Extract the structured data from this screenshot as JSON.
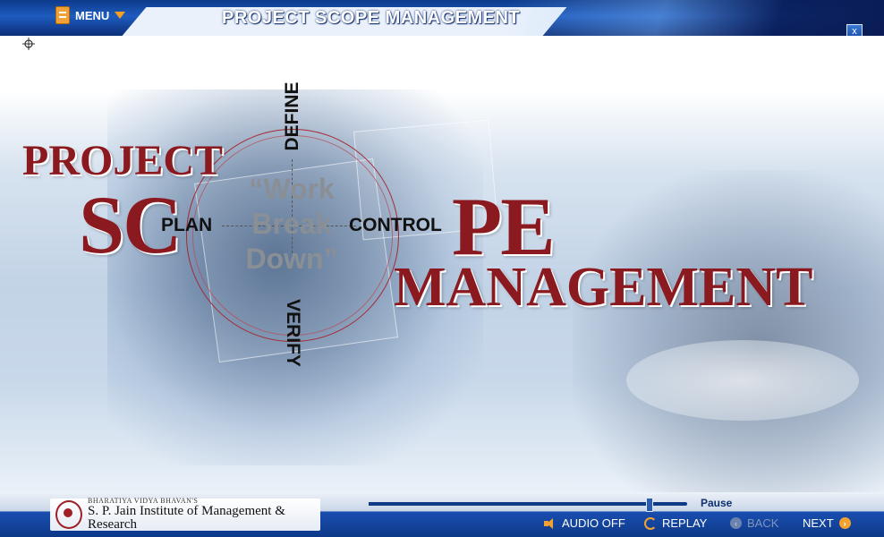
{
  "header": {
    "menu_label": "MENU",
    "title": "PROJECT SCOPE MANAGEMENT",
    "close_label": "x"
  },
  "slide": {
    "word_project": "PROJECT",
    "word_sc": "SC",
    "word_pe": "PE",
    "word_management": "MANAGEMENT",
    "cycle": {
      "define": "DEFINE",
      "plan": "PLAN",
      "control": "CONTROL",
      "verify": "VERIFY"
    },
    "wbd_lines": [
      "“Work",
      "Break",
      "Down”"
    ]
  },
  "footer": {
    "logo_small": "BHARATIYA VIDYA BHAVAN'S",
    "logo_name": "S. P. Jain Institute of Management & Research",
    "pause_label": "Pause",
    "progress_fraction": 0.88,
    "audio_label": "AUDIO OFF",
    "replay_label": "REPLAY",
    "back_label": "BACK",
    "next_label": "NEXT"
  },
  "colors": {
    "accent_red": "#8a1a1f",
    "bar_blue": "#1a4fb0",
    "icon_orange": "#f2a230"
  }
}
